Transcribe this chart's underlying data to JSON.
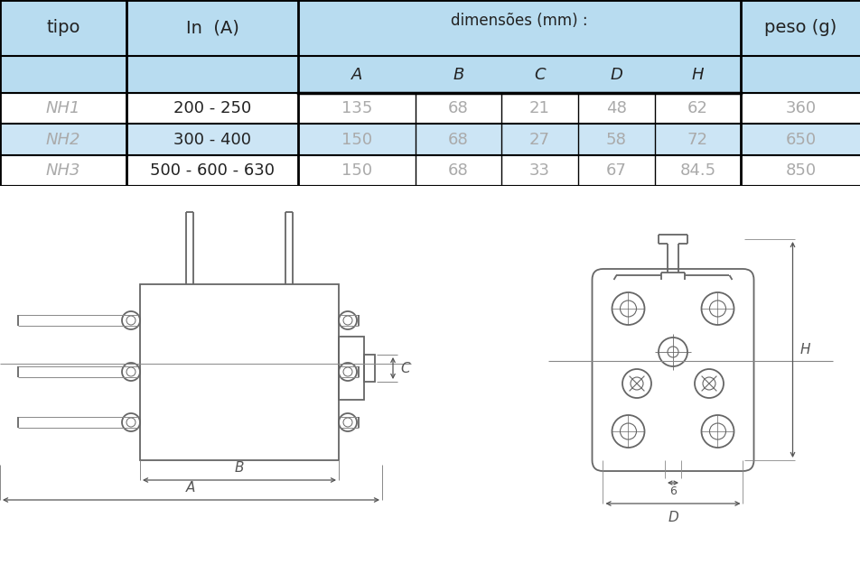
{
  "table": {
    "rows": [
      [
        "NH1",
        "200 - 250",
        "135",
        "68",
        "21",
        "48",
        "62",
        "360"
      ],
      [
        "NH2",
        "300 - 400",
        "150",
        "68",
        "27",
        "58",
        "72",
        "650"
      ],
      [
        "NH3",
        "500 - 600 - 630",
        "150",
        "68",
        "33",
        "67",
        "84.5",
        "850"
      ]
    ],
    "header_blue": "#b8dcf0",
    "row2_blue": "#cce5f5",
    "gray_text": "#aaaaaa",
    "dark_text": "#222222",
    "line_color": "#000000"
  },
  "drawing": {
    "line_color": "#666666",
    "dim_color": "#555555",
    "thin_color": "#888888"
  }
}
